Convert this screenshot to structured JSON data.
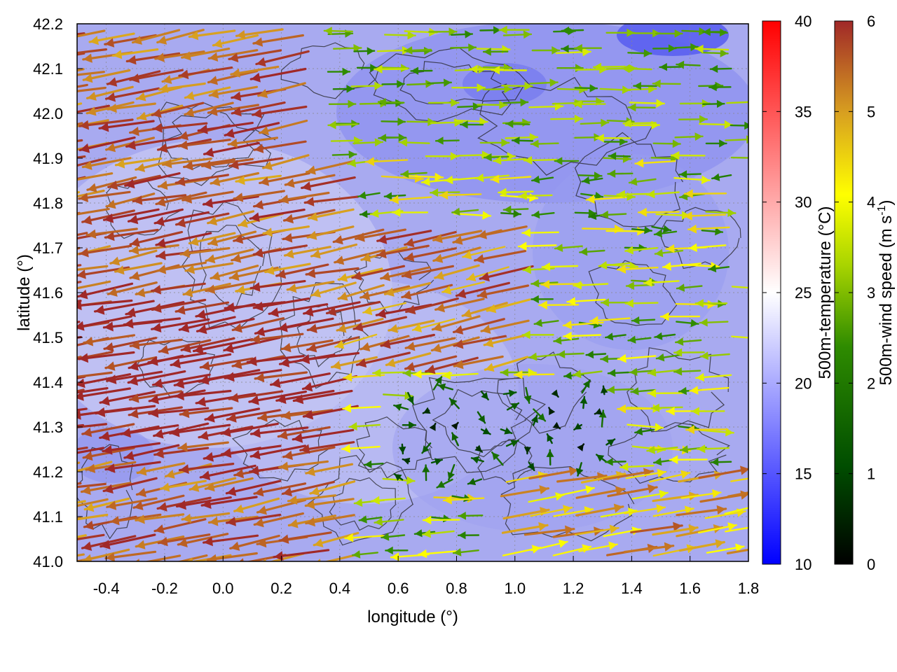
{
  "chart_data": {
    "type": "vector-field",
    "title": "",
    "xlabel": "longitude (°)",
    "ylabel": "latitude (°)",
    "xlim": [
      -0.5,
      1.8
    ],
    "ylim": [
      41.0,
      42.2
    ],
    "xticks": [
      "-0.4",
      "-0.2",
      "0.0",
      "0.2",
      "0.4",
      "0.6",
      "0.8",
      "1.0",
      "1.2",
      "1.4",
      "1.6",
      "1.8"
    ],
    "yticks": [
      "41.0",
      "41.1",
      "41.2",
      "41.3",
      "41.4",
      "41.5",
      "41.6",
      "41.7",
      "41.8",
      "41.9",
      "42.0",
      "42.1",
      "42.2"
    ],
    "grid": true,
    "background": "500m-temperature field, mostly 15–22 °C (blue-lavender)",
    "contours": "terrain contour lines (black)",
    "colorbars": [
      {
        "label": "500m-temperature (°C)",
        "min": 10,
        "max": 40,
        "ticks": [
          "10",
          "15",
          "20",
          "25",
          "30",
          "35",
          "40"
        ],
        "colors": [
          "#0000ff",
          "#ffffff",
          "#ff0000"
        ]
      },
      {
        "label_main": "500m-wind speed (m s",
        "label_sup": "-1",
        "label_end": ")",
        "min": 0,
        "max": 6,
        "ticks": [
          "0",
          "1",
          "2",
          "3",
          "4",
          "5",
          "6"
        ],
        "colors": [
          "#000000",
          "#006400",
          "#80c000",
          "#ffff00",
          "#d0a020",
          "#a52a2a"
        ]
      }
    ],
    "wind_regions": [
      {
        "region": "west, lat 41.2–42.1",
        "direction": "from east (arrows point west)",
        "speed_ms": 6
      },
      {
        "region": "center band, lat 41.45–41.75",
        "direction": "from east-northeast",
        "speed_ms": 5.5
      },
      {
        "region": "north-east, lat 41.9–42.2",
        "direction": "westerly to east",
        "speed_ms": 3
      },
      {
        "region": "south-east, lat 41.0–41.2",
        "direction": "toward east-northeast",
        "speed_ms": 4.5
      },
      {
        "region": "south-center, lat 41.2–41.4, lon 0.6–1.3",
        "direction": "weak / variable",
        "speed_ms": 1
      }
    ]
  }
}
